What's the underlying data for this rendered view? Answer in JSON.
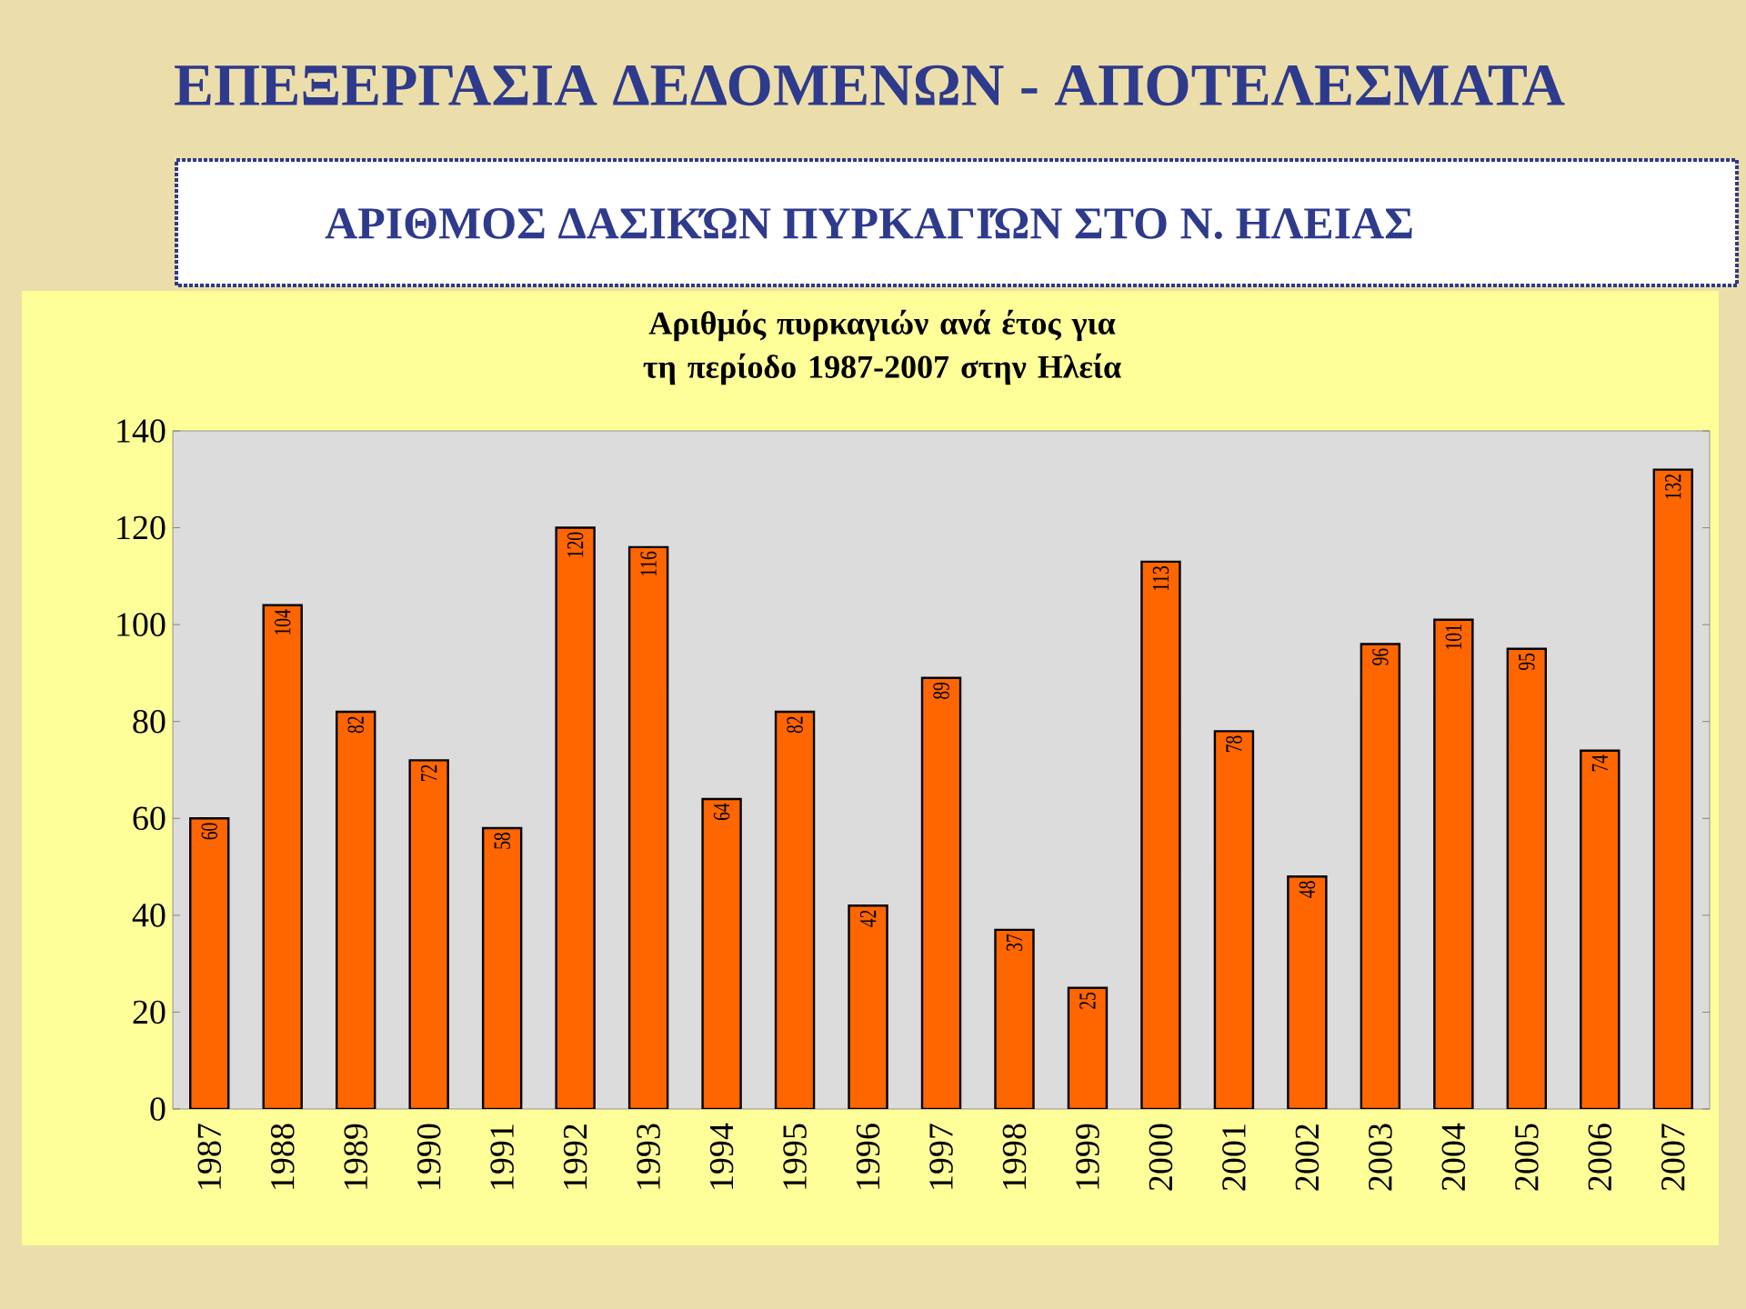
{
  "chart_data": {
    "type": "bar",
    "title": "ΕΠΕΞΕΡΓΑΣΙΑ ΔΕΔΟΜΕΝΩΝ - ΑΠΟΤΕΛΕΣΜΑΤΑ",
    "subtitle": "ΑΡΙΘΜΟΣ ΔΑΣΙΚΏΝ ΠΥΡΚΑΓΙΏΝ ΣΤΟ Ν. ΗΛΕΙΑΣ",
    "annotations": [
      "Αριθμός πυρκαγιών ανά έτος για τη περίοδο 1987-2007 στην Ηλεία"
    ],
    "categories": [
      "1987",
      "1988",
      "1989",
      "1990",
      "1991",
      "1992",
      "1993",
      "1994",
      "1995",
      "1996",
      "1997",
      "1998",
      "1999",
      "2000",
      "2001",
      "2002",
      "2003",
      "2004",
      "2005",
      "2006",
      "2007"
    ],
    "values": [
      60,
      104,
      82,
      72,
      58,
      120,
      116,
      64,
      82,
      42,
      89,
      37,
      25,
      113,
      78,
      48,
      96,
      101,
      95,
      74,
      132
    ],
    "color": "#ff6600",
    "ylim": [
      0,
      140
    ],
    "yticks": [
      0,
      20,
      40,
      60,
      80,
      100,
      120,
      140
    ],
    "data_labels": true,
    "grid": false
  }
}
